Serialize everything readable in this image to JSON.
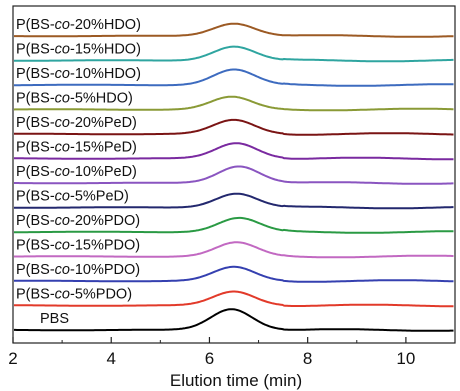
{
  "chart_data": {
    "type": "line",
    "title": "",
    "xlabel": "Elution time (min)",
    "ylabel": "",
    "xlim": [
      2,
      11
    ],
    "x_ticks": [
      2,
      4,
      6,
      8,
      10
    ],
    "x_tick_labels": [
      "2",
      "4",
      "6",
      "8",
      "10"
    ],
    "y_ticks_shown": false,
    "grid": false,
    "legend": "inline labels at left of each trace",
    "peak_center_min": 6.5,
    "series": [
      {
        "name": "P(BS-co-20%HDO)",
        "pre": "P(BS-",
        "ital": "co",
        "post": "-20%HDO)",
        "color": "#9c5a24",
        "peak_x": 6.5,
        "peak_height": 0.9
      },
      {
        "name": "P(BS-co-15%HDO)",
        "pre": "P(BS-",
        "ital": "co",
        "post": "-15%HDO)",
        "color": "#2fa5a0",
        "peak_x": 6.5,
        "peak_height": 1.0
      },
      {
        "name": "P(BS-co-10%HDO)",
        "pre": "P(BS-",
        "ital": "co",
        "post": "-10%HDO)",
        "color": "#3d6bbf",
        "peak_x": 6.5,
        "peak_height": 1.1
      },
      {
        "name": "P(BS-co-5%HDO)",
        "pre": "P(BS-",
        "ital": "co",
        "post": "-5%HDO)",
        "color": "#8a9a36",
        "peak_x": 6.45,
        "peak_height": 0.9
      },
      {
        "name": "P(BS-co-20%PeD)",
        "pre": "P(BS-",
        "ital": "co",
        "post": "-20%PeD)",
        "color": "#7a1414",
        "peak_x": 6.5,
        "peak_height": 1.0
      },
      {
        "name": "P(BS-co-15%PeD)",
        "pre": "P(BS-",
        "ital": "co",
        "post": "-15%PeD)",
        "color": "#7a2aa0",
        "peak_x": 6.55,
        "peak_height": 1.1
      },
      {
        "name": "P(BS-co-10%PeD)",
        "pre": "P(BS-",
        "ital": "co",
        "post": "-10%PeD)",
        "color": "#8a55c0",
        "peak_x": 6.6,
        "peak_height": 1.2
      },
      {
        "name": "P(BS-co-5%PeD)",
        "pre": "P(BS-",
        "ital": "co",
        "post": "-5%PeD)",
        "color": "#23286e",
        "peak_x": 6.55,
        "peak_height": 1.0
      },
      {
        "name": "P(BS-co-20%PDO)",
        "pre": "P(BS-",
        "ital": "co",
        "post": "-20%PDO)",
        "color": "#2a9a44",
        "peak_x": 6.6,
        "peak_height": 1.0
      },
      {
        "name": "P(BS-co-15%PDO)",
        "pre": "P(BS-",
        "ital": "co",
        "post": "-15%PDO)",
        "color": "#c269c2",
        "peak_x": 6.55,
        "peak_height": 1.0
      },
      {
        "name": "P(BS-co-10%PDO)",
        "pre": "P(BS-",
        "ital": "co",
        "post": "-10%PDO)",
        "color": "#3540b0",
        "peak_x": 6.5,
        "peak_height": 1.0
      },
      {
        "name": "P(BS-co-5%PDO)",
        "pre": "P(BS-",
        "ital": "co",
        "post": "-5%PDO)",
        "color": "#e23a2a",
        "peak_x": 6.5,
        "peak_height": 1.0
      },
      {
        "name": "PBS",
        "pre": "PBS",
        "ital": "",
        "post": "",
        "color": "#000000",
        "peak_x": 6.45,
        "peak_height": 1.5
      }
    ]
  }
}
